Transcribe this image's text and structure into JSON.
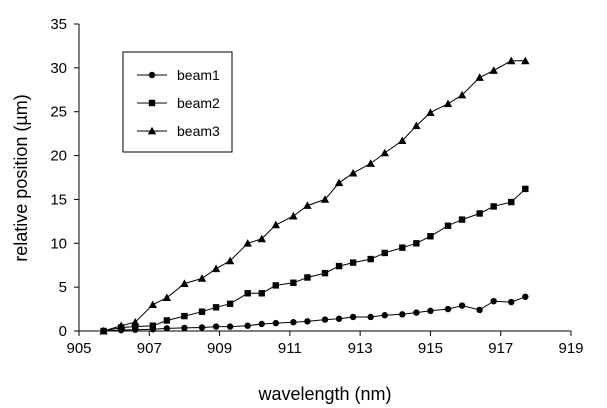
{
  "chart_data": {
    "type": "line",
    "title": "",
    "xlabel": "wavelength (nm)",
    "ylabel": "relative position (µm)",
    "xlim": [
      905,
      919
    ],
    "ylim": [
      0,
      35
    ],
    "xticks": [
      905,
      907,
      909,
      911,
      913,
      915,
      917,
      919
    ],
    "yticks": [
      0,
      5,
      10,
      15,
      20,
      25,
      30,
      35
    ],
    "grid": false,
    "legend_position": "top-left",
    "series": [
      {
        "name": "beam1",
        "marker": "circle",
        "x": [
          905.7,
          906.2,
          906.6,
          907.1,
          907.5,
          908.0,
          908.5,
          908.9,
          909.3,
          909.8,
          910.2,
          910.6,
          911.1,
          911.5,
          912.0,
          912.4,
          912.8,
          913.3,
          913.7,
          914.2,
          914.6,
          915.0,
          915.5,
          915.9,
          916.4,
          916.8,
          917.3,
          917.7
        ],
        "y": [
          0.0,
          0.1,
          0.15,
          0.2,
          0.3,
          0.35,
          0.4,
          0.5,
          0.5,
          0.6,
          0.8,
          0.9,
          1.0,
          1.1,
          1.3,
          1.4,
          1.6,
          1.6,
          1.8,
          1.9,
          2.1,
          2.3,
          2.5,
          2.9,
          2.4,
          3.4,
          3.3,
          3.9
        ]
      },
      {
        "name": "beam2",
        "marker": "square",
        "x": [
          905.7,
          906.2,
          906.6,
          907.1,
          907.5,
          908.0,
          908.5,
          908.9,
          909.3,
          909.8,
          910.2,
          910.6,
          911.1,
          911.5,
          912.0,
          912.4,
          912.8,
          913.3,
          913.7,
          914.2,
          914.6,
          915.0,
          915.5,
          915.9,
          916.4,
          916.8,
          917.3,
          917.7
        ],
        "y": [
          0.0,
          0.4,
          0.5,
          0.6,
          1.2,
          1.7,
          2.2,
          2.7,
          3.1,
          4.3,
          4.3,
          5.2,
          5.5,
          6.1,
          6.6,
          7.4,
          7.8,
          8.2,
          8.9,
          9.5,
          10.0,
          10.8,
          12.0,
          12.7,
          13.4,
          14.2,
          14.7,
          16.2
        ]
      },
      {
        "name": "beam3",
        "marker": "triangle",
        "x": [
          905.7,
          906.2,
          906.6,
          907.1,
          907.5,
          908.0,
          908.5,
          908.9,
          909.3,
          909.8,
          910.2,
          910.6,
          911.1,
          911.5,
          912.0,
          912.4,
          912.8,
          913.3,
          913.7,
          914.2,
          914.6,
          915.0,
          915.5,
          915.9,
          916.4,
          916.8,
          917.3,
          917.7
        ],
        "y": [
          0.0,
          0.6,
          1.0,
          3.0,
          3.8,
          5.4,
          6.0,
          7.1,
          8.0,
          10.0,
          10.5,
          12.1,
          13.1,
          14.3,
          15.0,
          16.9,
          18.0,
          19.1,
          20.3,
          21.7,
          23.4,
          24.9,
          25.9,
          26.9,
          28.9,
          29.7,
          30.8,
          30.8
        ]
      }
    ]
  },
  "style": {
    "line_color": "#000000",
    "marker_color": "#000000",
    "background": "#ffffff"
  }
}
